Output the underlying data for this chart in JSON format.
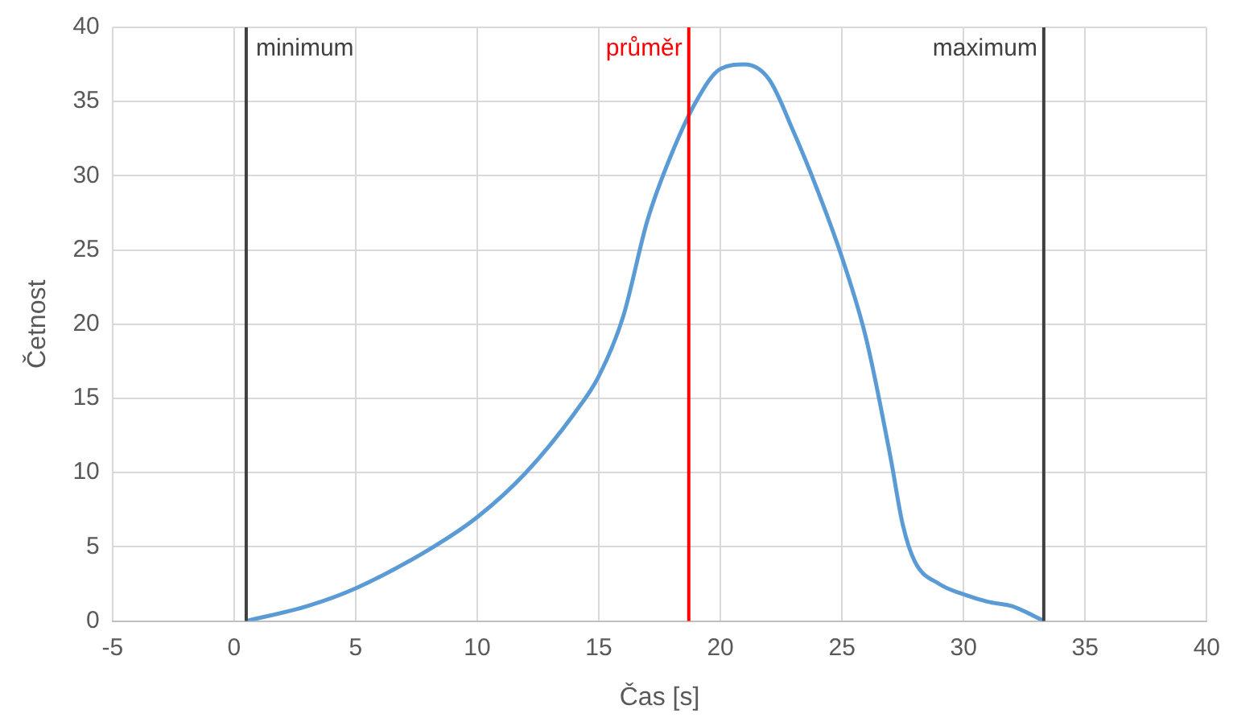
{
  "chart_data": {
    "type": "line",
    "xlabel": "Čas [s]",
    "ylabel": "Četnost",
    "xlim": [
      -5,
      40
    ],
    "xticks": [
      -5,
      0,
      5,
      10,
      15,
      20,
      25,
      30,
      35,
      40
    ],
    "ylim": [
      0,
      40
    ],
    "yticks": [
      0,
      5,
      10,
      15,
      20,
      25,
      30,
      35,
      40
    ],
    "grid": true,
    "legend": false,
    "marker": "none",
    "line_style": "solid",
    "series": [
      {
        "color": "#5b9bd5",
        "x": [
          0.5,
          3,
          5,
          8,
          10,
          12,
          14,
          15,
          16,
          17,
          18,
          19,
          20,
          21,
          22,
          23,
          24,
          25,
          26,
          27,
          27.5,
          28,
          29,
          30,
          31,
          32,
          32.7,
          33.3
        ],
        "values": [
          0,
          1,
          2.2,
          4.8,
          7,
          10,
          14,
          16.5,
          20.5,
          27,
          31.5,
          35,
          37.2,
          37.5,
          36.5,
          33,
          29,
          24.5,
          19,
          11,
          6.5,
          4,
          2.5,
          1.8,
          1.3,
          1,
          0.5,
          0
        ]
      }
    ],
    "ref_lines": [
      {
        "axis": "x",
        "value": 0.5,
        "label": "minimum",
        "color": "#404040"
      },
      {
        "axis": "x",
        "value": 18.7,
        "label": "průměr",
        "color": "#ff0000"
      },
      {
        "axis": "x",
        "value": 33.3,
        "label": "maximum",
        "color": "#404040"
      }
    ]
  }
}
